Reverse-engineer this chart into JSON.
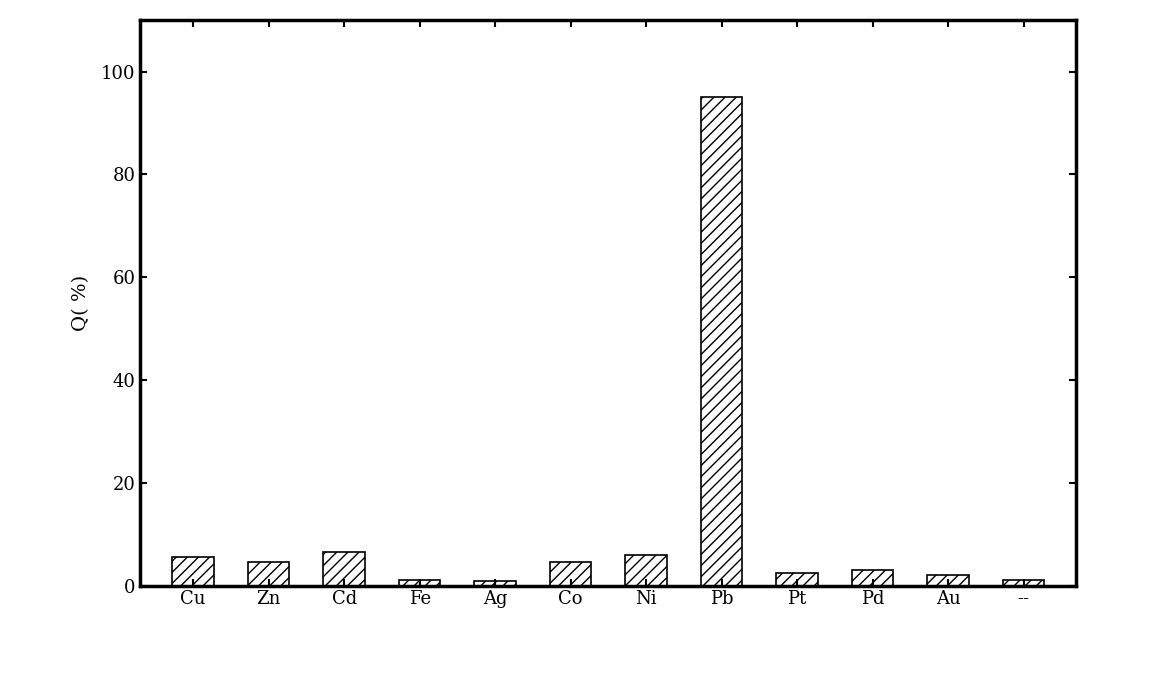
{
  "categories": [
    "Cu",
    "Zn",
    "Cd",
    "Fe",
    "Ag",
    "Co",
    "Ni",
    "Pb",
    "Pt",
    "Pd",
    "Au",
    "--"
  ],
  "values": [
    5.5,
    4.5,
    6.5,
    1.0,
    0.8,
    4.5,
    6.0,
    95.0,
    2.5,
    3.0,
    2.0,
    1.0
  ],
  "ylabel": "Q( %)",
  "ylim": [
    0,
    110
  ],
  "yticks": [
    0,
    20,
    40,
    60,
    80,
    100
  ],
  "bar_color": "#ffffff",
  "hatch": "///",
  "background_color": "#ffffff",
  "bar_width": 0.55,
  "edge_color": "#000000",
  "label_fontsize": 14,
  "tick_fontsize": 13,
  "spine_linewidth": 2.5
}
